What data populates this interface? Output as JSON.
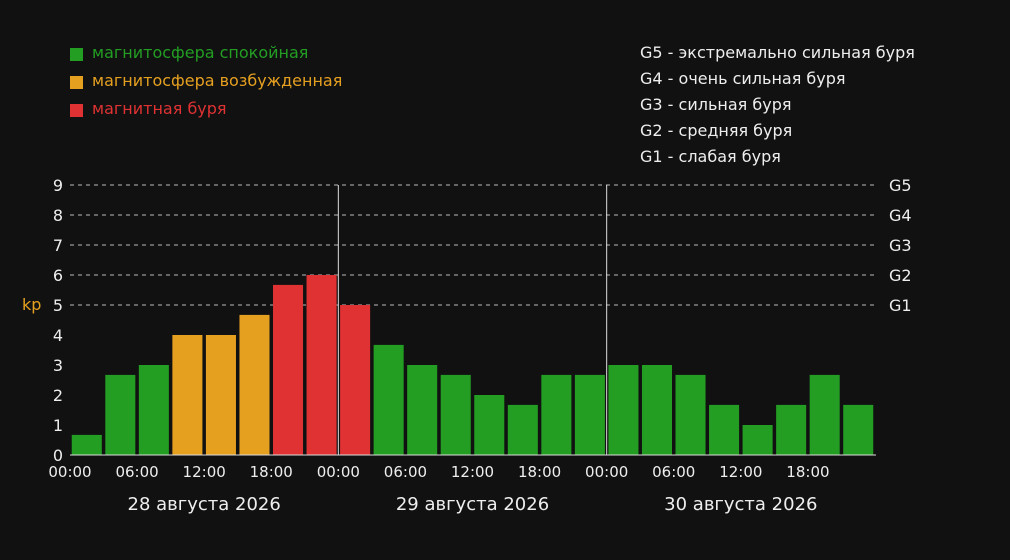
{
  "legend": [
    {
      "label": "магнитосфера спокойная",
      "color": "#239e23"
    },
    {
      "label": "магнитосфера возбужденная",
      "color": "#e6a020"
    },
    {
      "label": "магнитная буря",
      "color": "#e03232"
    }
  ],
  "storm_scale": [
    "G5 - экстремально сильная буря",
    "G4 - очень сильная буря",
    "G3 - сильная буря",
    "G2 - средняя буря",
    "G1 - слабая буря"
  ],
  "chart_data": {
    "type": "bar",
    "ylabel": "kp",
    "ylim": [
      0,
      9
    ],
    "y_ticks": [
      "0",
      "1",
      "2",
      "3",
      "4",
      "5",
      "6",
      "7",
      "8",
      "9"
    ],
    "grid": "dashed horizontal lines at kp 5, 6, 7, 8, 9",
    "g_levels": [
      {
        "kp": 9,
        "label": "G5"
      },
      {
        "kp": 8,
        "label": "G4"
      },
      {
        "kp": 7,
        "label": "G3"
      },
      {
        "kp": 6,
        "label": "G2"
      },
      {
        "kp": 5,
        "label": "G1"
      }
    ],
    "x_ticks": [
      "00:00",
      "06:00",
      "12:00",
      "18:00",
      "00:00",
      "06:00",
      "12:00",
      "18:00",
      "00:00",
      "06:00",
      "12:00",
      "18:00"
    ],
    "dates": [
      "28 августа 2026",
      "29 августа 2026",
      "30 августа 2026"
    ],
    "bars_per_day": 8,
    "values": [
      0.67,
      2.67,
      3,
      4,
      4,
      4.67,
      5.67,
      6,
      5,
      3.67,
      3,
      2.67,
      2,
      1.67,
      2.67,
      2.67,
      3,
      3,
      2.67,
      1.67,
      1,
      1.67,
      2.67,
      1.67
    ],
    "categories": [
      "calm",
      "calm",
      "calm",
      "excited",
      "excited",
      "excited",
      "storm",
      "storm",
      "storm",
      "calm",
      "calm",
      "calm",
      "calm",
      "calm",
      "calm",
      "calm",
      "calm",
      "calm",
      "calm",
      "calm",
      "calm",
      "calm",
      "calm",
      "calm"
    ],
    "colors": {
      "calm": "#239e23",
      "excited": "#e6a020",
      "storm": "#e03232"
    },
    "text_color": "#eeeeee",
    "ylabel_color": "#e6a020"
  }
}
